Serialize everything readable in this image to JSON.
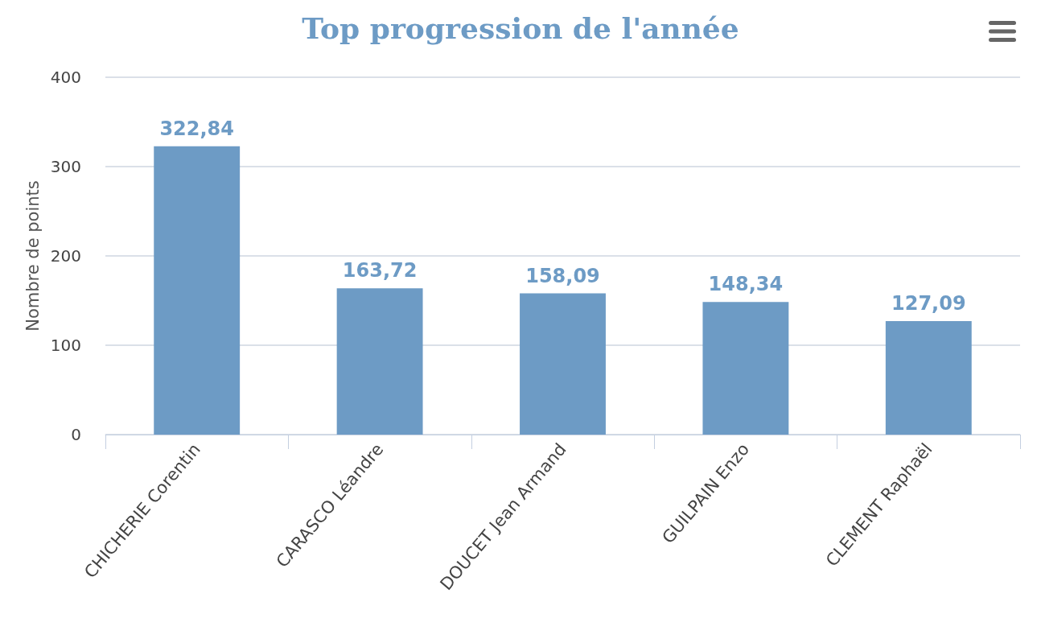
{
  "chart_data": {
    "type": "bar",
    "title": "Top progression de l'année",
    "ylabel": "Nombre de points",
    "categories": [
      "CHICHERIE Corentin",
      "CARASCO Léandre",
      "DOUCET Jean Armand",
      "GUILPAIN Enzo",
      "CLEMENT Raphaël"
    ],
    "values": [
      322.84,
      163.72,
      158.09,
      148.34,
      127.09
    ],
    "value_labels": [
      "322,84",
      "163,72",
      "158,09",
      "148,34",
      "127,09"
    ],
    "color": "#6d9bc5",
    "ylim": [
      0,
      400
    ],
    "yticks": [
      0,
      100,
      200,
      300,
      400
    ],
    "grid": "y"
  }
}
